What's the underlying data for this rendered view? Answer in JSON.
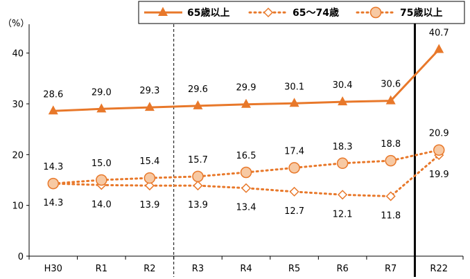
{
  "chart_data": {
    "type": "line",
    "unit_label": "（%）",
    "categories": [
      "H30",
      "R1",
      "R2",
      "R3",
      "R4",
      "R5",
      "R6",
      "R7",
      "R22"
    ],
    "ylim": [
      0,
      45
    ],
    "yticks": [
      0,
      10,
      20,
      30,
      40
    ],
    "grid": false,
    "legend_position": "top-right",
    "series": [
      {
        "name": "65歳以上",
        "style": "solid",
        "marker": "triangle",
        "color": "#E8782A",
        "values": [
          28.6,
          29.0,
          29.3,
          29.6,
          29.9,
          30.1,
          30.4,
          30.6,
          40.7
        ],
        "labels": [
          "28.6",
          "29.0",
          "29.3",
          "29.6",
          "29.9",
          "30.1",
          "30.4",
          "30.6",
          "40.7"
        ]
      },
      {
        "name": "65～74歳",
        "style": "dotted",
        "marker": "diamond-open",
        "color": "#E8782A",
        "values": [
          14.3,
          14.0,
          13.9,
          13.9,
          13.4,
          12.7,
          12.1,
          11.8,
          19.9
        ],
        "labels": [
          "14.3",
          "14.0",
          "13.9",
          "13.9",
          "13.4",
          "12.7",
          "12.1",
          "11.8",
          "19.9"
        ]
      },
      {
        "name": "75歳以上",
        "style": "dotted",
        "marker": "circle-filled",
        "color": "#E8782A",
        "fill": "#F7C9A3",
        "values": [
          14.3,
          15.0,
          15.4,
          15.7,
          16.5,
          17.4,
          18.3,
          18.8,
          20.9
        ],
        "labels": [
          "14.3",
          "15.0",
          "15.4",
          "15.7",
          "16.5",
          "17.4",
          "18.3",
          "18.8",
          "20.9"
        ]
      }
    ],
    "dividers": [
      {
        "after_category": "R2",
        "style": "dashed"
      },
      {
        "after_category": "R7",
        "style": "solid-thick"
      }
    ]
  }
}
